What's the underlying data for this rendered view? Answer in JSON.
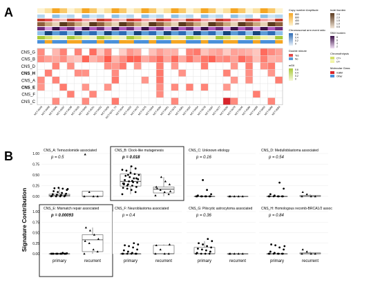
{
  "panel_a": {
    "label": "A",
    "rows": [
      "CNS_G",
      "CNS_B",
      "CNS_D",
      "CNS_H",
      "CNS_A",
      "CNS_E",
      "CNS_F",
      "CNS_C"
    ],
    "bold_rows": [
      "CNS_H",
      "CNS_E"
    ],
    "columns": [
      "NCT-0049",
      "NCT-0068",
      "NCT-0096",
      "NCT-0097",
      "NCT-0038",
      "NCT-0025",
      "NCT-0060",
      "NCT-0031",
      "NCT-0052",
      "NCT-0056",
      "NCT-0074_T4",
      "NCT-0044",
      "NCT-0053",
      "NCT-0072",
      "NCT-0075",
      "NCT-0069",
      "NCT-0090",
      "NCT-0091",
      "NCT-0076",
      "NCT-0081",
      "NCT-0097",
      "NCT-0064",
      "NCT-0078",
      "NCT-0087",
      "NCT-0077",
      "NCT-0030",
      "NCT-0079",
      "NCT-0046",
      "NCT-0086",
      "NCT-0089",
      "NCT-0063",
      "NCT-0088",
      "NCT-0083"
    ],
    "legend": {
      "copy_number": "Copy number Amplitude",
      "copy_number_ticks": [
        "800",
        "600",
        "400",
        "200"
      ],
      "chrom_arm": "Chromosomal arm event ratio",
      "chrom_arm_ticks": [
        "0.6",
        "0.4",
        "0.2",
        "0"
      ],
      "double_minute": "Double minute",
      "double_minute_items": [
        "Yes",
        "No"
      ],
      "wgii": "wGII",
      "wgii_ticks": [
        "0.6",
        "0.4",
        "0.2",
        "0"
      ],
      "indel_burden": "Indel burden",
      "indel_ticks": [
        "2.5",
        "2.0",
        "1.5",
        "1.0",
        "0.5"
      ],
      "snv_burden": "SNV burden",
      "snv_ticks": [
        "8",
        "6",
        "4",
        "2"
      ],
      "chromothripsis": "Chromothripsis",
      "chromothripsis_items": [
        "CT+",
        "CT-"
      ],
      "molecular_class": "Molecular Class",
      "molecular_class_items": [
        "rGBM",
        "Other"
      ]
    }
  },
  "panel_b": {
    "label": "B",
    "ylabel": "Signature Contribution",
    "ylim": [
      0,
      1
    ],
    "yticks": [
      "0.00",
      "0.25",
      "0.50",
      "0.75",
      "1.00"
    ],
    "categories": [
      "primary",
      "recurrent"
    ]
  },
  "chart_data": [
    {
      "type": "scatter",
      "title": "CNS_A: Temozolomide associated",
      "pvalue": "p = 0.5",
      "highlight": false,
      "categories": [
        "primary",
        "recurrent"
      ],
      "ylim": [
        0,
        1
      ],
      "series": [
        {
          "values": [
            0,
            0,
            0,
            0,
            0.01,
            0.02,
            0.03,
            0.04,
            0.05,
            0.06,
            0.08,
            0.1,
            0.12,
            0.15,
            0.18,
            0.2,
            0.19,
            0.17
          ]
        },
        {
          "values": [
            0,
            0,
            0,
            0.1,
            0.98
          ]
        }
      ],
      "box": [
        {
          "q1": 0,
          "median": 0.02,
          "q3": 0.05,
          "lo": 0,
          "hi": 0.2
        },
        {
          "q1": 0,
          "median": 0,
          "q3": 0.12,
          "lo": 0,
          "hi": 0.12
        }
      ]
    },
    {
      "type": "scatter",
      "title": "CNS_B: Clock-like mutagenesis",
      "pvalue": "p = 0.018",
      "highlight": true,
      "categories": [
        "primary",
        "recurrent"
      ],
      "ylim": [
        0,
        1
      ],
      "series": [
        {
          "values": [
            0.05,
            0.1,
            0.15,
            0.18,
            0.2,
            0.22,
            0.25,
            0.28,
            0.3,
            0.32,
            0.33,
            0.35,
            0.38,
            0.4,
            0.42,
            0.45,
            0.48,
            0.5,
            0.52,
            0.55,
            0.6,
            0.62,
            0.65,
            0.7,
            0.25,
            0.3,
            0.42,
            0.36,
            0.5,
            0.28
          ]
        },
        {
          "values": [
            0.02,
            0.05,
            0.1,
            0.15,
            0.22,
            0.28,
            0.35,
            0.45,
            0.18,
            0.12
          ]
        }
      ],
      "box": [
        {
          "q1": 0.24,
          "median": 0.35,
          "q3": 0.52,
          "lo": 0.05,
          "hi": 0.72
        },
        {
          "q1": 0.08,
          "median": 0.17,
          "q3": 0.22,
          "lo": 0,
          "hi": 0.45
        }
      ]
    },
    {
      "type": "scatter",
      "title": "CNS_C: Unknown etiology",
      "pvalue": "p = 0.16",
      "highlight": false,
      "categories": [
        "primary",
        "recurrent"
      ],
      "ylim": [
        0,
        1
      ],
      "series": [
        {
          "values": [
            0,
            0,
            0,
            0,
            0,
            0,
            0,
            0,
            0.02,
            0.05,
            0.15,
            0.38
          ]
        },
        {
          "values": [
            0,
            0,
            0,
            0,
            0
          ]
        }
      ],
      "box": [
        {
          "q1": 0,
          "median": 0,
          "q3": 0,
          "lo": 0,
          "hi": 0
        },
        {
          "q1": 0,
          "median": 0,
          "q3": 0,
          "lo": 0,
          "hi": 0
        }
      ]
    },
    {
      "type": "scatter",
      "title": "CNS_D: Medulloblastoma associated",
      "pvalue": "p = 0.54",
      "highlight": false,
      "categories": [
        "primary",
        "recurrent"
      ],
      "ylim": [
        0,
        1
      ],
      "series": [
        {
          "values": [
            0,
            0,
            0,
            0,
            0,
            0,
            0,
            0.02,
            0.05,
            0.18,
            0.32
          ]
        },
        {
          "values": [
            0,
            0,
            0,
            0.05,
            0.1
          ]
        }
      ],
      "box": [
        {
          "q1": 0,
          "median": 0,
          "q3": 0,
          "lo": 0,
          "hi": 0
        },
        {
          "q1": 0,
          "median": 0,
          "q3": 0.02,
          "lo": 0,
          "hi": 0.05
        }
      ]
    },
    {
      "type": "scatter",
      "title": "CNS_E: Mismatch repair associated",
      "pvalue": "p = 0.00093",
      "highlight": true,
      "categories": [
        "primary",
        "recurrent"
      ],
      "ylim": [
        0,
        1
      ],
      "series": [
        {
          "values": [
            0,
            0,
            0,
            0,
            0,
            0,
            0,
            0,
            0,
            0,
            0,
            0,
            0,
            0.01,
            0.02
          ]
        },
        {
          "values": [
            0,
            0.05,
            0.1,
            0.25,
            0.3,
            0.35,
            0.45,
            0.55,
            0.62
          ]
        }
      ],
      "box": [
        {
          "q1": 0,
          "median": 0,
          "q3": 0,
          "lo": 0,
          "hi": 0
        },
        {
          "q1": 0.05,
          "median": 0.33,
          "q3": 0.45,
          "lo": 0,
          "hi": 0.62
        }
      ]
    },
    {
      "type": "scatter",
      "title": "CNS_F: Neuroblastoma associated",
      "pvalue": "p = 0.4",
      "highlight": false,
      "categories": [
        "primary",
        "recurrent"
      ],
      "ylim": [
        0,
        1
      ],
      "series": [
        {
          "values": [
            0,
            0,
            0,
            0,
            0,
            0,
            0.02,
            0.05,
            0.08,
            0.1,
            0.15,
            0.18,
            0.2,
            0.22,
            0.25
          ]
        },
        {
          "values": [
            0,
            0,
            0,
            0.1,
            0.2,
            0.22
          ]
        }
      ],
      "box": [
        {
          "q1": 0,
          "median": 0,
          "q3": 0,
          "lo": 0,
          "hi": 0.02
        },
        {
          "q1": 0,
          "median": 0,
          "q3": 0.2,
          "lo": 0,
          "hi": 0.22
        }
      ]
    },
    {
      "type": "scatter",
      "title": "CNS_G: Pilocytic astrocytoma associated",
      "pvalue": "p = 0.36",
      "highlight": false,
      "categories": [
        "primary",
        "recurrent"
      ],
      "ylim": [
        0,
        1
      ],
      "series": [
        {
          "values": [
            0,
            0,
            0,
            0,
            0.02,
            0.05,
            0.08,
            0.1,
            0.12,
            0.15,
            0.18,
            0.22,
            0.25,
            0.3,
            0.35
          ]
        },
        {
          "values": [
            0,
            0,
            0,
            0,
            0
          ]
        }
      ],
      "box": [
        {
          "q1": 0,
          "median": 0,
          "q3": 0.15,
          "lo": 0,
          "hi": 0.3
        },
        {
          "q1": 0,
          "median": 0,
          "q3": 0,
          "lo": 0,
          "hi": 0
        }
      ]
    },
    {
      "type": "scatter",
      "title": "CNS_H: Homologous recomb-BRCA1/2 assoc",
      "pvalue": "p = 0.84",
      "highlight": false,
      "categories": [
        "primary",
        "recurrent"
      ],
      "ylim": [
        0,
        1
      ],
      "series": [
        {
          "values": [
            0,
            0,
            0,
            0,
            0,
            0,
            0,
            0.02,
            0.05,
            0.1,
            0.15,
            0.2,
            0.22,
            0.18
          ]
        },
        {
          "values": [
            0,
            0,
            0,
            0.05,
            0.1
          ]
        }
      ],
      "box": [
        {
          "q1": 0,
          "median": 0,
          "q3": 0,
          "lo": 0,
          "hi": 0
        },
        {
          "q1": 0,
          "median": 0,
          "q3": 0.02,
          "lo": 0,
          "hi": 0.05
        }
      ]
    }
  ]
}
